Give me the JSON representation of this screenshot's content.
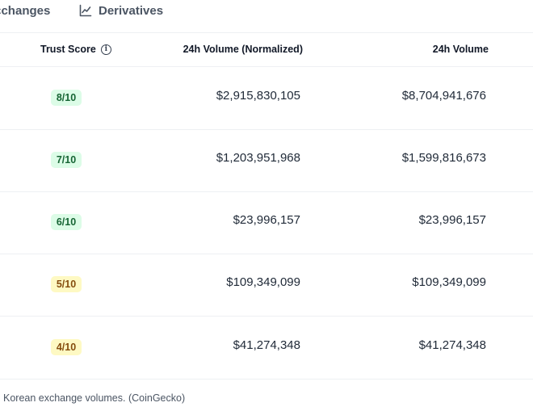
{
  "tabs": [
    {
      "label": "changes",
      "prefix_glyph": "‹"
    },
    {
      "label": "Derivatives",
      "icon": "line-chart-icon"
    }
  ],
  "table": {
    "headers": {
      "trust_score": "Trust Score",
      "volume_normalized": "24h Volume (Normalized)",
      "volume": "24h Volume"
    },
    "rows": [
      {
        "trust": "8/10",
        "trust_color": "green",
        "normalized": "$2,915,830,105",
        "volume": "$8,704,941,676"
      },
      {
        "trust": "7/10",
        "trust_color": "green",
        "normalized": "$1,203,951,968",
        "volume": "$1,599,816,673"
      },
      {
        "trust": "6/10",
        "trust_color": "green",
        "normalized": "$23,996,157",
        "volume": "$23,996,157"
      },
      {
        "trust": "5/10",
        "trust_color": "yellow",
        "normalized": "$109,349,099",
        "volume": "$109,349,099"
      },
      {
        "trust": "4/10",
        "trust_color": "yellow",
        "normalized": "$41,274,348",
        "volume": "$41,274,348"
      }
    ]
  },
  "caption": "Korean exchange volumes. (CoinGecko)",
  "colors": {
    "badge_green_bg": "#dcfce7",
    "badge_green_text": "#166534",
    "badge_yellow_bg": "#fef9c3",
    "badge_yellow_text": "#854d0e"
  }
}
